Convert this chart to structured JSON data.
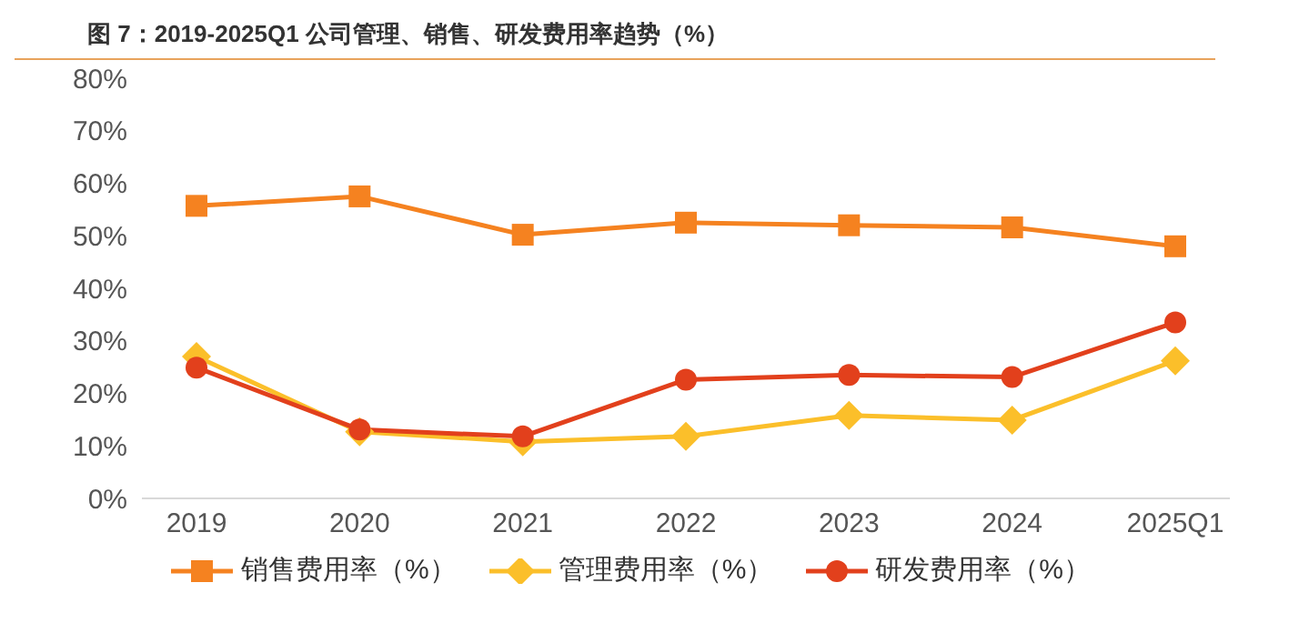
{
  "chart_data": {
    "type": "line",
    "title": "图 7：2019-2025Q1 公司管理、销售、研发费用率趋势（%）",
    "categories": [
      "2019",
      "2020",
      "2021",
      "2022",
      "2023",
      "2024",
      "2025Q1"
    ],
    "series": [
      {
        "name": "销售费用率（%）",
        "color": "#f58220",
        "marker": "square",
        "values": [
          55.7,
          57.5,
          50.2,
          52.5,
          52,
          51.6,
          48
        ]
      },
      {
        "name": "管理费用率（%）",
        "color": "#fbbf2a",
        "marker": "diamond",
        "values": [
          27,
          12.7,
          10.8,
          11.8,
          15.8,
          14.9,
          26.2
        ]
      },
      {
        "name": "研发费用率（%）",
        "color": "#e2401c",
        "marker": "circle",
        "values": [
          24.9,
          13.1,
          11.8,
          22.6,
          23.5,
          23.1,
          33.5
        ]
      }
    ],
    "ylim": [
      0,
      80
    ],
    "yticks": [
      {
        "value": 0,
        "label": "0%"
      },
      {
        "value": 10,
        "label": "10%"
      },
      {
        "value": 20,
        "label": "20%"
      },
      {
        "value": 30,
        "label": "30%"
      },
      {
        "value": 40,
        "label": "40%"
      },
      {
        "value": 50,
        "label": "50%"
      },
      {
        "value": 60,
        "label": "60%"
      },
      {
        "value": 70,
        "label": "70%"
      },
      {
        "value": 80,
        "label": "80%"
      }
    ],
    "grid": false,
    "legend": "bottom",
    "line_style": "solid"
  }
}
